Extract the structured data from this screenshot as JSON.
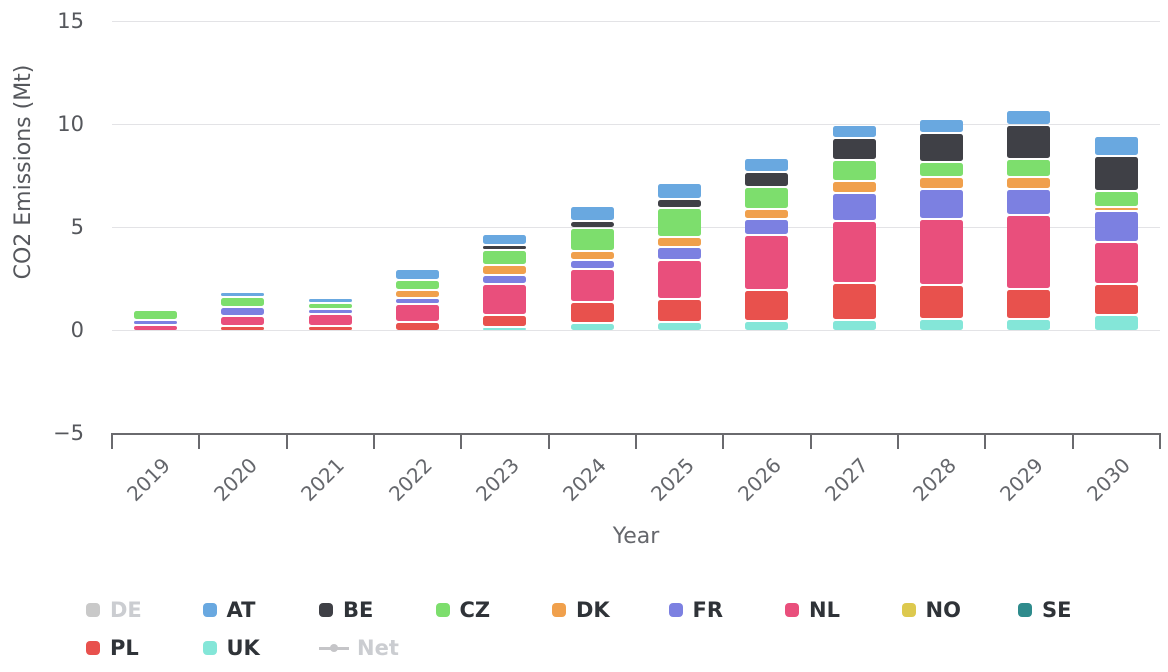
{
  "chart_data": {
    "type": "bar",
    "stacked": true,
    "xlabel": "Year",
    "ylabel": "CO2 Emissions (Mt)",
    "ylim": [
      -5,
      15
    ],
    "yticks": [
      {
        "v": 15,
        "label": "15"
      },
      {
        "v": 10,
        "label": "10"
      },
      {
        "v": 5,
        "label": "5"
      },
      {
        "v": 0,
        "label": "0"
      },
      {
        "v": -5,
        "label": "−5"
      }
    ],
    "grid": "horizontal",
    "legend_position": "bottom",
    "categories": [
      "2019",
      "2020",
      "2021",
      "2022",
      "2023",
      "2024",
      "2025",
      "2026",
      "2027",
      "2028",
      "2029",
      "2030"
    ],
    "stack_order_bottom_to_top": [
      "UK",
      "PL",
      "SE",
      "NO",
      "NL",
      "FR",
      "DK",
      "CZ",
      "BE",
      "AT"
    ],
    "series": [
      {
        "name": "DE",
        "color": "#c9c9c9",
        "disabled": true
      },
      {
        "name": "AT",
        "color": "#69a8e0",
        "values": [
          0,
          0.15,
          0.15,
          0.45,
          0.45,
          0.65,
          0.65,
          0.55,
          0.5,
          0.55,
          0.65,
          0.9
        ]
      },
      {
        "name": "BE",
        "color": "#3f4046",
        "values": [
          0,
          0,
          0,
          0,
          0.15,
          0.25,
          0.35,
          0.65,
          1.0,
          1.35,
          1.55,
          1.6
        ]
      },
      {
        "name": "CZ",
        "color": "#7dde6d",
        "values": [
          0.4,
          0.4,
          0.15,
          0.4,
          0.65,
          1.0,
          1.3,
          0.95,
          0.9,
          0.6,
          0.75,
          0.65
        ]
      },
      {
        "name": "DK",
        "color": "#f0a04c",
        "values": [
          0,
          0,
          0,
          0.3,
          0.35,
          0.35,
          0.4,
          0.4,
          0.5,
          0.5,
          0.5,
          0.1
        ]
      },
      {
        "name": "FR",
        "color": "#7c80e1",
        "values": [
          0.15,
          0.3,
          0.15,
          0.2,
          0.35,
          0.35,
          0.55,
          0.7,
          1.25,
          1.35,
          1.15,
          1.4
        ]
      },
      {
        "name": "NL",
        "color": "#e94f7c",
        "values": [
          0.2,
          0.4,
          0.5,
          0.75,
          1.4,
          1.5,
          1.8,
          2.55,
          2.9,
          3.1,
          3.5,
          1.95
        ]
      },
      {
        "name": "NO",
        "color": "#ddc94e",
        "values": [
          0,
          0,
          0,
          0,
          0,
          0,
          0,
          0,
          0,
          0,
          0,
          0
        ]
      },
      {
        "name": "SE",
        "color": "#2e8b8c",
        "values": [
          0,
          0,
          0,
          0,
          0,
          0,
          0,
          0,
          0,
          0,
          0,
          0
        ]
      },
      {
        "name": "PL",
        "color": "#e8514d",
        "values": [
          0,
          0.15,
          0.15,
          0.35,
          0.5,
          0.9,
          1.0,
          1.4,
          1.7,
          1.55,
          1.35,
          1.4
        ]
      },
      {
        "name": "UK",
        "color": "#84e6d8",
        "values": [
          0,
          0,
          0,
          0,
          0.1,
          0.3,
          0.35,
          0.4,
          0.45,
          0.5,
          0.5,
          0.7
        ]
      },
      {
        "name": "Net",
        "color": "#c5c5c8",
        "disabled": true,
        "marker": "line-dot"
      }
    ],
    "legend": {
      "rows": [
        [
          "DE",
          "AT",
          "BE",
          "CZ",
          "DK",
          "FR",
          "NL",
          "NO",
          "SE"
        ],
        [
          "PL",
          "UK",
          "Net"
        ]
      ]
    }
  }
}
